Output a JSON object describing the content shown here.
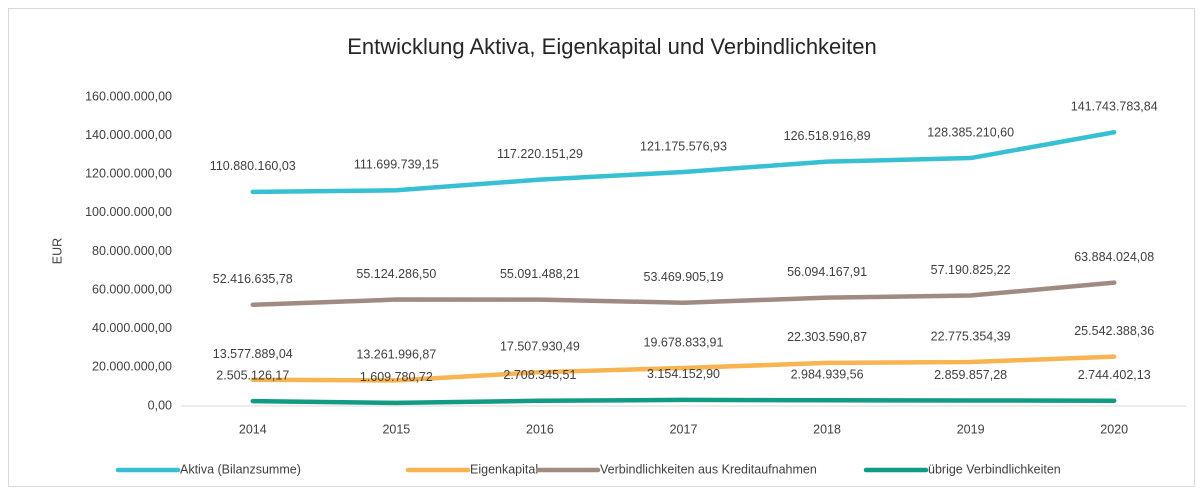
{
  "chart_data": {
    "type": "line",
    "title": "Entwicklung Aktiva, Eigenkapital und Verbindlichkeiten",
    "y_label": "EUR",
    "categories": [
      "2014",
      "2015",
      "2016",
      "2017",
      "2018",
      "2019",
      "2020"
    ],
    "series": [
      {
        "name": "Aktiva (Bilanzsumme)",
        "color": "#37c0d4",
        "values": [
          110880160.03,
          111699739.15,
          117220151.29,
          121175576.93,
          126518916.89,
          128385210.6,
          141743783.84
        ],
        "value_labels": [
          "110.880.160,03",
          "111.699.739,15",
          "117.220.151,29",
          "121.175.576,93",
          "126.518.916,89",
          "128.385.210,60",
          "141.743.783,84"
        ]
      },
      {
        "name": "Eigenkapital",
        "color": "#f8b450",
        "values": [
          13577889.04,
          13261996.87,
          17507930.49,
          19678833.91,
          22303590.87,
          22775354.39,
          25542388.36
        ],
        "value_labels": [
          "13.577.889,04",
          "13.261.996,87",
          "17.507.930,49",
          "19.678.833,91",
          "22.303.590,87",
          "22.775.354,39",
          "25.542.388,36"
        ]
      },
      {
        "name": "Verbindlichkeiten aus Kreditaufnahmen",
        "color": "#a08b82",
        "values": [
          52416635.78,
          55124286.5,
          55091488.21,
          53469905.19,
          56094167.91,
          57190825.22,
          63884024.08
        ],
        "value_labels": [
          "52.416.635,78",
          "55.124.286,50",
          "55.091.488,21",
          "53.469.905,19",
          "56.094.167,91",
          "57.190.825,22",
          "63.884.024,08"
        ]
      },
      {
        "name": "übrige Verbindlichkeiten",
        "color": "#119b84",
        "values": [
          2505126.17,
          1609780.72,
          2708345.51,
          3154152.9,
          2984939.56,
          2859857.28,
          2744402.13
        ],
        "value_labels": [
          "2.505.126,17",
          "1.609.780,72",
          "2.708.345,51",
          "3.154.152,90",
          "2.984.939,56",
          "2.859.857,28",
          "2.744.402,13"
        ]
      }
    ],
    "ylim": [
      0,
      160000000
    ],
    "yticks": [
      {
        "value": 0,
        "label": "0,00"
      },
      {
        "value": 20000000,
        "label": "20.000.000,00"
      },
      {
        "value": 40000000,
        "label": "40.000.000,00"
      },
      {
        "value": 60000000,
        "label": "60.000.000,00"
      },
      {
        "value": 80000000,
        "label": "80.000.000,00"
      },
      {
        "value": 100000000,
        "label": "100.000.000,00"
      },
      {
        "value": 120000000,
        "label": "120.000.000,00"
      },
      {
        "value": 140000000,
        "label": "140.000.000,00"
      },
      {
        "value": 160000000,
        "label": "160.000.000,00"
      }
    ],
    "grid": false,
    "legend": "bottom"
  }
}
